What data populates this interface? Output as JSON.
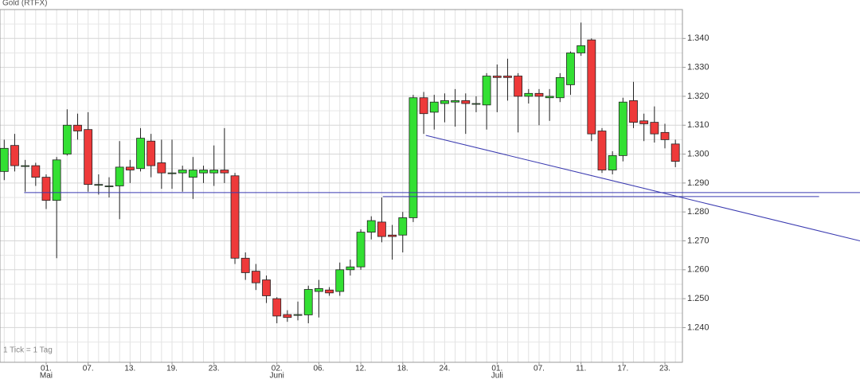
{
  "chart_data": {
    "type": "candlestick",
    "title": "Gold (RTFX)",
    "note": "1 Tick = 1 Tag",
    "categories": [
      null,
      null,
      null,
      null,
      "01.",
      null,
      null,
      null,
      "07.",
      null,
      null,
      null,
      "13.",
      null,
      null,
      null,
      "19.",
      null,
      null,
      null,
      "23.",
      null,
      null,
      null,
      null,
      null,
      "02.",
      null,
      null,
      null,
      "06.",
      null,
      null,
      null,
      "12.",
      null,
      null,
      null,
      "18.",
      null,
      null,
      null,
      "24.",
      null,
      null,
      null,
      null,
      "01.",
      null,
      null,
      null,
      "07.",
      null,
      null,
      null,
      "11.",
      null,
      null,
      null,
      "17.",
      null,
      null,
      null,
      "23.",
      null
    ],
    "months": [
      null,
      null,
      null,
      null,
      "Mai",
      null,
      null,
      null,
      null,
      null,
      null,
      null,
      null,
      null,
      null,
      null,
      null,
      null,
      null,
      null,
      null,
      null,
      null,
      null,
      null,
      null,
      "Juni",
      null,
      null,
      null,
      null,
      null,
      null,
      null,
      null,
      null,
      null,
      null,
      null,
      null,
      null,
      null,
      null,
      null,
      null,
      null,
      null,
      "Juli",
      null,
      null,
      null,
      null,
      null,
      null,
      null,
      null,
      null,
      null,
      null,
      null,
      null,
      null,
      null,
      null,
      null
    ],
    "open": [
      1.294,
      1.303,
      1.296,
      1.296,
      1.292,
      1.284,
      1.3,
      1.31,
      1.3085,
      1.2895,
      1.289,
      1.289,
      1.2955,
      1.295,
      1.3045,
      1.297,
      1.2935,
      1.2935,
      1.292,
      1.2935,
      1.2935,
      1.2945,
      1.2925,
      1.264,
      1.2595,
      1.2565,
      1.25,
      1.2445,
      1.2445,
      1.2444,
      1.2525,
      1.253,
      1.2525,
      1.26,
      1.261,
      1.273,
      1.2765,
      1.272,
      1.272,
      1.278,
      1.3195,
      1.3145,
      1.3175,
      1.318,
      1.3185,
      1.3175,
      1.317,
      1.327,
      1.327,
      1.327,
      1.32,
      1.321,
      1.3195,
      1.3195,
      1.324,
      1.335,
      1.3395,
      1.308,
      1.2945,
      1.2995,
      1.3185,
      1.3115,
      1.311,
      1.3075,
      1.3035
    ],
    "high": [
      1.305,
      1.307,
      1.298,
      1.297,
      1.293,
      1.299,
      1.3155,
      1.314,
      1.3145,
      1.293,
      1.292,
      1.3045,
      1.298,
      1.309,
      1.307,
      1.305,
      1.305,
      1.296,
      1.299,
      1.296,
      1.303,
      1.309,
      1.2935,
      1.266,
      1.262,
      1.258,
      1.2505,
      1.246,
      1.249,
      1.2545,
      1.2565,
      1.254,
      1.2625,
      1.2635,
      1.274,
      1.2785,
      1.285,
      1.2755,
      1.28,
      1.3205,
      1.3215,
      1.3205,
      1.321,
      1.3225,
      1.321,
      1.32,
      1.328,
      1.331,
      1.333,
      1.328,
      1.3225,
      1.3225,
      1.3225,
      1.328,
      1.3355,
      1.3455,
      1.34,
      1.309,
      1.301,
      1.3195,
      1.325,
      1.314,
      1.3165,
      1.3105,
      1.305
    ],
    "low": [
      1.291,
      1.294,
      1.287,
      1.289,
      1.281,
      1.264,
      1.2995,
      1.305,
      1.287,
      1.286,
      1.285,
      1.2775,
      1.29,
      1.294,
      1.292,
      1.288,
      1.288,
      1.287,
      1.2845,
      1.29,
      1.289,
      1.29,
      1.262,
      1.2565,
      1.253,
      1.2485,
      1.2415,
      1.242,
      1.2425,
      1.2415,
      1.2435,
      1.251,
      1.251,
      1.258,
      1.26,
      1.2705,
      1.2695,
      1.2635,
      1.266,
      1.2765,
      1.307,
      1.3085,
      1.311,
      1.3095,
      1.307,
      1.3145,
      1.3085,
      1.3145,
      1.3185,
      1.3075,
      1.3175,
      1.31,
      1.3115,
      1.318,
      1.3205,
      1.334,
      1.3045,
      1.2935,
      1.293,
      1.2975,
      1.309,
      1.3045,
      1.304,
      1.302,
      1.2955
    ],
    "close": [
      1.302,
      1.296,
      1.296,
      1.292,
      1.284,
      1.298,
      1.31,
      1.308,
      1.2895,
      1.2895,
      1.289,
      1.2955,
      1.2945,
      1.3055,
      1.296,
      1.2935,
      1.2935,
      1.2945,
      1.2945,
      1.2945,
      1.2945,
      1.2935,
      1.264,
      1.259,
      1.2555,
      1.251,
      1.244,
      1.2435,
      1.2445,
      1.2532,
      1.2535,
      1.252,
      1.26,
      1.261,
      1.273,
      1.277,
      1.2715,
      1.2715,
      1.278,
      1.3195,
      1.314,
      1.318,
      1.3185,
      1.3185,
      1.3175,
      1.3175,
      1.327,
      1.3265,
      1.3265,
      1.32,
      1.321,
      1.32,
      1.32,
      1.3265,
      1.335,
      1.3375,
      1.307,
      1.2945,
      1.2995,
      1.318,
      1.311,
      1.3105,
      1.307,
      1.305,
      1.2975
    ],
    "up_color": "#33e033",
    "down_color": "#ee3a3a",
    "ylim": [
      1.228,
      1.35
    ],
    "yticks": [
      {
        "value": 1.24,
        "label": "1.240"
      },
      {
        "value": 1.25,
        "label": "1.250"
      },
      {
        "value": 1.26,
        "label": "1.260"
      },
      {
        "value": 1.27,
        "label": "1.270"
      },
      {
        "value": 1.28,
        "label": "1.280"
      },
      {
        "value": 1.29,
        "label": "1.290"
      },
      {
        "value": 1.3,
        "label": "1.300"
      },
      {
        "value": 1.31,
        "label": "1.310"
      },
      {
        "value": 1.32,
        "label": "1.320"
      },
      {
        "value": 1.33,
        "label": "1.330"
      },
      {
        "value": 1.34,
        "label": "1.340"
      }
    ],
    "yminor": [
      1.235,
      1.245,
      1.255,
      1.265,
      1.275,
      1.285,
      1.295,
      1.305,
      1.315,
      1.325,
      1.335,
      1.345
    ],
    "grid": true,
    "lines": [
      {
        "color": "#3a3ab0",
        "points": [
          [
            1.9,
            1.2867
          ],
          [
            81.6,
            1.2867
          ]
        ]
      },
      {
        "color": "#3a3ab0",
        "points": [
          [
            36.1,
            1.2853
          ],
          [
            77.7,
            1.2853
          ]
        ]
      },
      {
        "color": "#3a3ab0",
        "points": [
          [
            40.2,
            1.3065
          ],
          [
            81.6,
            1.27
          ]
        ]
      }
    ]
  }
}
